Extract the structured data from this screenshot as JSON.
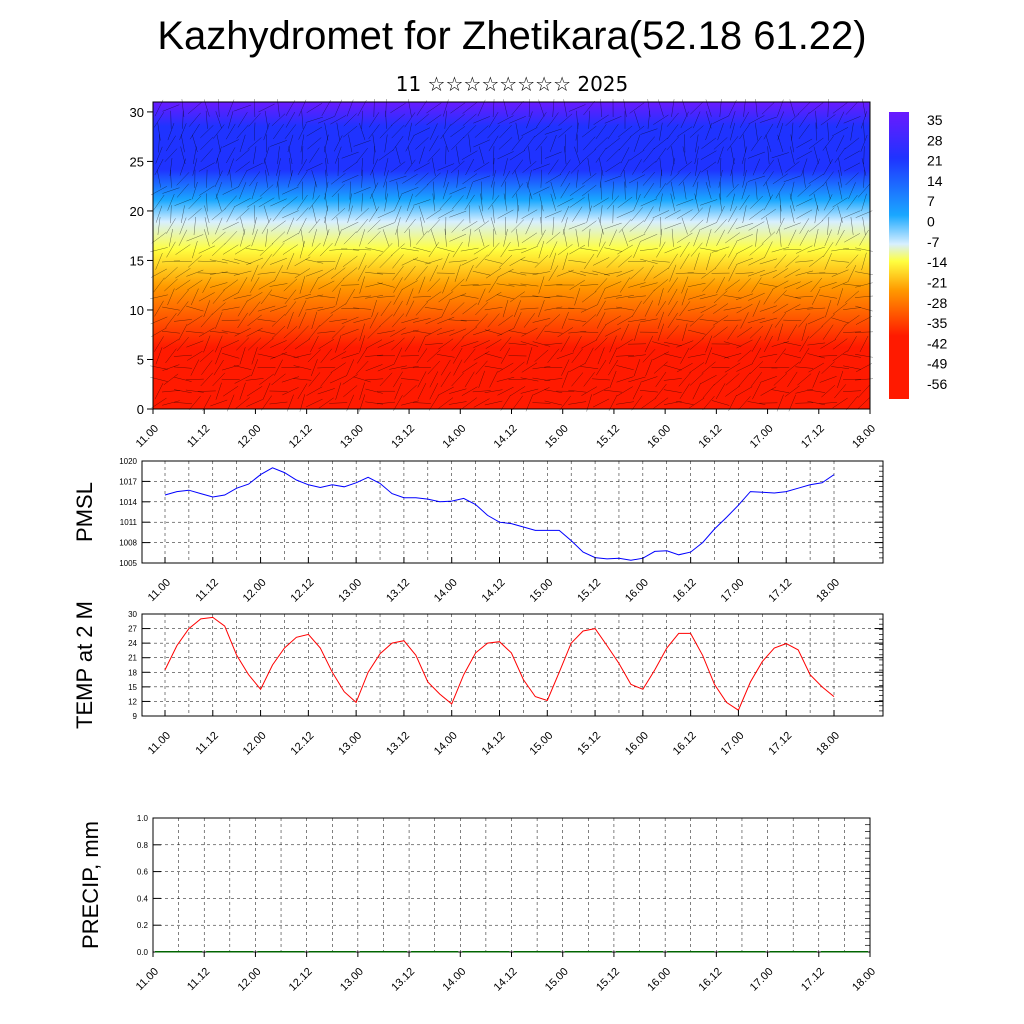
{
  "title": "Kazhydromet for Zhetikara(52.18 61.22)",
  "subtitle": "11 ☆☆☆☆☆☆☆☆ 2025",
  "time_labels": [
    "11.00",
    "11.12",
    "12.00",
    "12.12",
    "13.00",
    "13.12",
    "14.00",
    "14.12",
    "15.00",
    "15.12",
    "16.00",
    "16.12",
    "17.00",
    "17.12",
    "18.00"
  ],
  "chart_data": [
    {
      "type": "heatmap",
      "description_kind": "temperature cross-section with wind barbs",
      "x": "time",
      "x_tick_labels": [
        "11.00",
        "11.12",
        "12.00",
        "12.12",
        "13.00",
        "13.12",
        "14.00",
        "14.12",
        "15.00",
        "15.12",
        "16.00",
        "16.12",
        "17.00",
        "17.12",
        "18.00"
      ],
      "y_ticks": [
        0,
        5,
        10,
        15,
        20,
        25,
        30
      ],
      "ylim": [
        0,
        31
      ],
      "colorbar_labels": [
        "35",
        "28",
        "21",
        "14",
        "7",
        "0",
        "-7",
        "-14",
        "-21",
        "-28",
        "-35",
        "-42",
        "-49",
        "-56"
      ],
      "colors": {
        "warm": "#ff1a00",
        "orange": "#ff9a00",
        "yellow": "#ffff40",
        "light": "#d7efff",
        "cyan": "#1aa8ff",
        "blue": "#1f33ff",
        "violet": "#6a1aff"
      }
    },
    {
      "type": "line",
      "ylabel": "PMSL",
      "ylim": [
        1005,
        1020
      ],
      "y_ticks": [
        1005,
        1008,
        1011,
        1014,
        1017,
        1020
      ],
      "x_tick_labels": [
        "11.00",
        "11.12",
        "12.00",
        "12.12",
        "13.00",
        "13.12",
        "14.00",
        "14.12",
        "15.00",
        "15.12",
        "16.00",
        "16.12",
        "17.00",
        "17.12",
        "18.00"
      ],
      "x_hours": [
        0,
        3,
        6,
        9,
        12,
        15,
        18,
        21,
        24,
        27,
        30,
        33,
        36,
        39,
        42,
        45,
        48,
        51,
        54,
        57,
        60,
        63,
        66,
        69,
        72,
        75,
        78,
        81,
        84,
        87,
        90,
        93,
        96,
        99,
        102,
        105,
        108,
        111,
        114,
        117,
        120,
        123,
        126,
        129,
        132,
        135,
        138,
        141,
        144,
        147,
        150,
        153,
        156,
        159,
        162,
        165,
        168
      ],
      "values": [
        1015.0,
        1015.5,
        1015.7,
        1015.2,
        1014.7,
        1015.0,
        1016.0,
        1016.6,
        1018.0,
        1019.0,
        1018.3,
        1017.2,
        1016.5,
        1016.1,
        1016.5,
        1016.2,
        1016.8,
        1017.6,
        1016.7,
        1015.2,
        1014.6,
        1014.6,
        1014.4,
        1014.0,
        1014.1,
        1014.5,
        1013.6,
        1012.0,
        1011.0,
        1010.8,
        1010.3,
        1009.8,
        1009.8,
        1009.8,
        1008.3,
        1006.6,
        1005.8,
        1005.6,
        1005.7,
        1005.4,
        1005.7,
        1006.7,
        1006.8,
        1006.2,
        1006.6,
        1008.0,
        1010.0,
        1011.7,
        1013.5,
        1015.5,
        1015.4,
        1015.3,
        1015.5,
        1016.0,
        1016.5,
        1016.8,
        1018.0
      ],
      "color": "#0000ff"
    },
    {
      "type": "line",
      "ylabel": "TEMP at 2 M",
      "ylim": [
        9,
        30
      ],
      "y_ticks": [
        9,
        12,
        15,
        18,
        21,
        24,
        27,
        30
      ],
      "x_tick_labels": [
        "11.00",
        "11.12",
        "12.00",
        "12.12",
        "13.00",
        "13.12",
        "14.00",
        "14.12",
        "15.00",
        "15.12",
        "16.00",
        "16.12",
        "17.00",
        "17.12",
        "18.00"
      ],
      "x_hours": [
        0,
        3,
        6,
        9,
        12,
        15,
        18,
        21,
        24,
        27,
        30,
        33,
        36,
        39,
        42,
        45,
        48,
        51,
        54,
        57,
        60,
        63,
        66,
        69,
        72,
        75,
        78,
        81,
        84,
        87,
        90,
        93,
        96,
        99,
        102,
        105,
        108,
        111,
        114,
        117,
        120,
        123,
        126,
        129,
        132,
        135,
        138,
        141,
        144,
        147,
        150,
        153,
        156,
        159,
        162,
        165,
        168
      ],
      "values": [
        18.5,
        23.5,
        27.0,
        29.0,
        29.3,
        27.5,
        21.5,
        17.5,
        14.5,
        19.5,
        23.0,
        25.2,
        25.8,
        23.0,
        18.0,
        14.0,
        11.8,
        18.0,
        21.8,
        24.0,
        24.5,
        21.5,
        16.0,
        13.5,
        11.5,
        17.5,
        22.0,
        24.0,
        24.3,
        22.0,
        16.5,
        13.0,
        12.2,
        18.0,
        24.0,
        26.5,
        27.0,
        23.5,
        19.8,
        15.5,
        14.5,
        18.5,
        23.0,
        26.0,
        26.0,
        21.5,
        15.5,
        11.8,
        10.2,
        16.0,
        20.2,
        23.0,
        23.9,
        22.6,
        17.5,
        15.0,
        13.0
      ],
      "color": "#ff0000"
    },
    {
      "type": "bar",
      "ylabel": "PRECIP, mm",
      "ylim": [
        0.0,
        1.0
      ],
      "y_tick_labels": [
        "0.0",
        "0.2",
        "0.4",
        "0.6",
        "0.8",
        "1.0"
      ],
      "x_tick_labels": [
        "11.00",
        "11.12",
        "12.00",
        "12.12",
        "13.00",
        "13.12",
        "14.00",
        "14.12",
        "15.00",
        "15.12",
        "16.00",
        "16.12",
        "17.00",
        "17.12",
        "18.00"
      ],
      "values": [
        0,
        0,
        0,
        0,
        0,
        0,
        0,
        0,
        0,
        0,
        0,
        0,
        0,
        0
      ],
      "color": "#006400"
    }
  ]
}
